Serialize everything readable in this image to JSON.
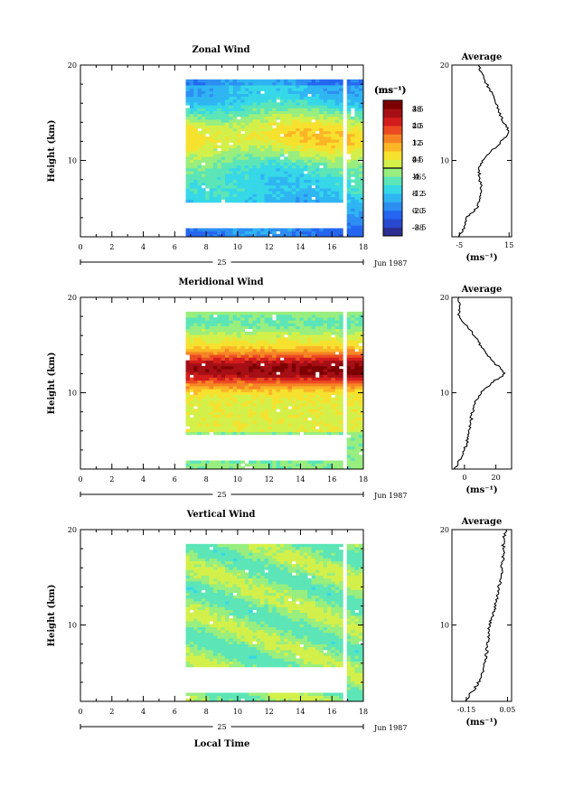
{
  "chart_data": [
    {
      "type": "heatmap",
      "title": "Zonal Wind",
      "ylabel": "Height (km)",
      "xlim": [
        0,
        18
      ],
      "ylim": [
        2,
        20
      ],
      "x_ticks": [
        "0",
        "2",
        "4",
        "6",
        "8",
        "10",
        "12",
        "14",
        "16",
        "18"
      ],
      "y_ticks": [
        "10",
        "20"
      ],
      "date_axis": {
        "day": "25",
        "month_year": "Jun 1987"
      },
      "colorbar": {
        "unit": "(ms⁻¹)",
        "labels": [
          "48",
          "40",
          "32",
          "24",
          "16",
          "8",
          "0",
          "-8"
        ],
        "min": -12,
        "max": 52,
        "colors": [
          "#2c2f8f",
          "#2848cf",
          "#2466f0",
          "#2d8ef2",
          "#2fb5f2",
          "#36d8e8",
          "#5ce5b7",
          "#98ee7e",
          "#d3f04a",
          "#f6e12e",
          "#fbb526",
          "#f68424",
          "#ec4b22",
          "#d21c1c",
          "#a50f15",
          "#7d0000"
        ]
      },
      "data_start_hour": 6.7,
      "profile_model": "zonal",
      "average_profile": {
        "title": "Average",
        "xlim": [
          -8,
          16
        ],
        "x_ticks": [
          "-5",
          "15"
        ],
        "x_tick_values": [
          -5,
          15
        ],
        "xlabel": "(ms⁻¹)",
        "y_ticks": [
          "10",
          "20"
        ],
        "height_km": [
          2,
          3,
          4,
          5,
          6,
          7,
          8,
          9,
          10,
          11,
          12,
          13,
          14,
          15,
          16,
          17,
          18,
          19,
          20
        ],
        "values": [
          -5,
          -3,
          -2,
          2,
          3,
          4,
          3,
          3,
          4,
          8,
          12,
          15,
          13,
          11,
          10,
          8,
          6,
          4,
          3
        ]
      }
    },
    {
      "type": "heatmap",
      "title": "Meridional Wind",
      "ylabel": "Height (km)",
      "xlim": [
        0,
        18
      ],
      "ylim": [
        2,
        20
      ],
      "x_ticks": [
        "0",
        "2",
        "4",
        "6",
        "8",
        "10",
        "12",
        "14",
        "16",
        "18"
      ],
      "y_ticks": [
        "10",
        "20"
      ],
      "date_axis": {
        "day": "25",
        "month_year": "Jun 1987"
      },
      "colorbar": {
        "unit": "(ms⁻¹)",
        "labels": [
          "28",
          "20",
          "12",
          "4",
          "-4",
          "-12",
          "-20",
          "-28"
        ],
        "min": -32,
        "max": 32,
        "colors": [
          "#2c2f8f",
          "#2848cf",
          "#2466f0",
          "#2d8ef2",
          "#2fb5f2",
          "#36d8e8",
          "#5ce5b7",
          "#98ee7e",
          "#d3f04a",
          "#f6e12e",
          "#fbb526",
          "#f68424",
          "#ec4b22",
          "#d21c1c",
          "#a50f15",
          "#7d0000"
        ]
      },
      "data_start_hour": 6.7,
      "profile_model": "meridional",
      "average_profile": {
        "title": "Average",
        "xlim": [
          -8,
          30
        ],
        "x_ticks": [
          "0",
          "20"
        ],
        "x_tick_values": [
          0,
          20
        ],
        "xlabel": "(ms⁻¹)",
        "y_ticks": [
          "10",
          "20"
        ],
        "height_km": [
          2,
          3,
          4,
          5,
          6,
          7,
          8,
          9,
          10,
          11,
          12,
          13,
          14,
          15,
          16,
          17,
          18,
          19,
          20
        ],
        "values": [
          -6,
          -3,
          0,
          2,
          3,
          4,
          5,
          7,
          10,
          17,
          26,
          20,
          14,
          10,
          6,
          2,
          -4,
          -3,
          -4
        ]
      }
    },
    {
      "type": "heatmap",
      "title": "Vertical Wind",
      "ylabel": "Height (km)",
      "xlabel": "Local Time",
      "xlim": [
        0,
        18
      ],
      "ylim": [
        2,
        20
      ],
      "x_ticks": [
        "0",
        "2",
        "4",
        "6",
        "8",
        "10",
        "12",
        "14",
        "16",
        "18"
      ],
      "y_ticks": [
        "10",
        "20"
      ],
      "date_axis": {
        "day": "25",
        "month_year": "Jun 1987"
      },
      "colorbar": {
        "unit": "(ms⁻¹)",
        "labels": [
          "3.5",
          "2.5",
          "1.5",
          "0.5",
          "-0.5",
          "-1.5",
          "-2.5",
          "-3.5"
        ],
        "min": -4,
        "max": 4,
        "colors": [
          "#2c2f8f",
          "#2848cf",
          "#2466f0",
          "#2d8ef2",
          "#2fb5f2",
          "#36d8e8",
          "#5ce5b7",
          "#98ee7e",
          "#d3f04a",
          "#f6e12e",
          "#fbb526",
          "#f68424",
          "#ec4b22",
          "#d21c1c",
          "#a50f15",
          "#7d0000"
        ]
      },
      "data_start_hour": 6.7,
      "profile_model": "vertical",
      "average_profile": {
        "title": "Average",
        "xlim": [
          -0.22,
          0.07
        ],
        "x_ticks": [
          "-0.15",
          "0.05"
        ],
        "x_tick_values": [
          -0.15,
          0.05
        ],
        "xlabel": "(ms⁻¹)",
        "y_ticks": [
          "10",
          "20"
        ],
        "height_km": [
          2,
          3,
          4,
          5,
          6,
          7,
          8,
          9,
          10,
          11,
          12,
          13,
          14,
          15,
          16,
          17,
          18,
          19,
          20
        ],
        "values": [
          -0.16,
          -0.12,
          -0.09,
          -0.07,
          -0.06,
          -0.05,
          -0.05,
          -0.04,
          -0.04,
          -0.02,
          -0.01,
          0.0,
          0.01,
          0.02,
          0.02,
          0.03,
          0.03,
          0.03,
          0.04
        ]
      }
    }
  ]
}
